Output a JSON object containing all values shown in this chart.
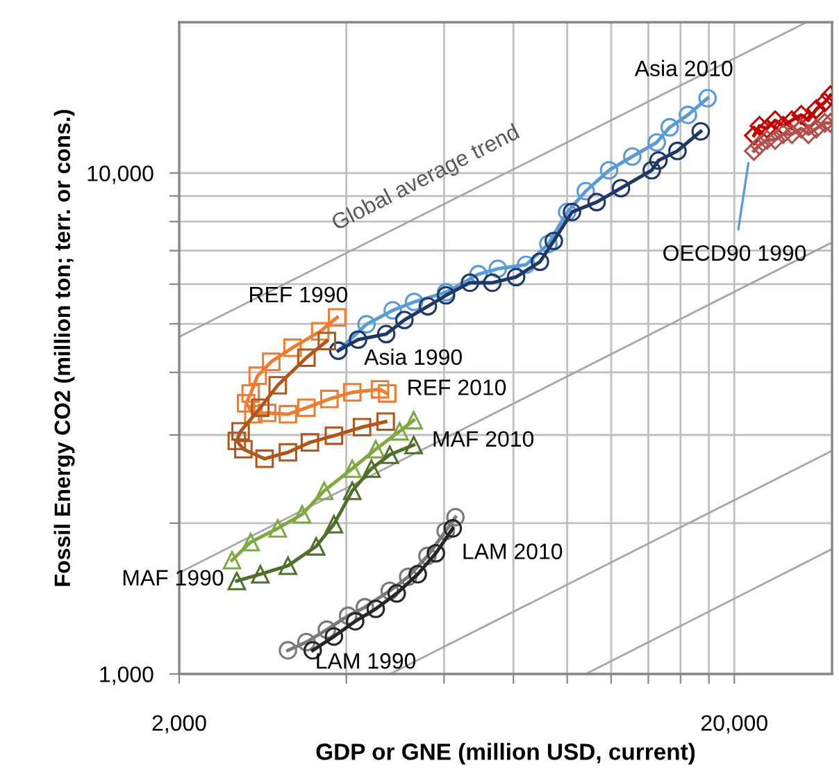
{
  "chart_data": {
    "type": "line",
    "xlabel": "GDP or GNE (million USD, current)",
    "ylabel": "Fossil Energy CO2 (million ton; terr. or cons.)",
    "log": "xy",
    "xlim": [
      2000,
      30000
    ],
    "xticks": [
      {
        "value": 2000,
        "label": "2,000"
      },
      {
        "value": 4000,
        "label": null
      },
      {
        "value": 6000,
        "label": null
      },
      {
        "value": 8000,
        "label": null
      },
      {
        "value": 10000,
        "label": null
      },
      {
        "value": 12000,
        "label": null
      },
      {
        "value": 14000,
        "label": null
      },
      {
        "value": 16000,
        "label": null
      },
      {
        "value": 18000,
        "label": null
      },
      {
        "value": 20000,
        "label": "20,000"
      }
    ],
    "ylim": [
      1000,
      20000
    ],
    "yticks": [
      {
        "value": 1000,
        "label": "1,000"
      },
      {
        "value": 2000,
        "label": null
      },
      {
        "value": 3000,
        "label": null
      },
      {
        "value": 4000,
        "label": null
      },
      {
        "value": 5000,
        "label": null
      },
      {
        "value": 6000,
        "label": null
      },
      {
        "value": 7000,
        "label": null
      },
      {
        "value": 8000,
        "label": null
      },
      {
        "value": 9000,
        "label": null
      },
      {
        "value": 10000,
        "label": "10,000"
      }
    ],
    "grid": true,
    "series": [
      {
        "type": "line",
        "color": "#a6a6a6",
        "marker": "none",
        "x": [
          2000,
          27000
        ],
        "values": [
          4710,
          20000
        ]
      },
      {
        "type": "line",
        "color": "#a6a6a6",
        "marker": "none",
        "x": [
          2000,
          30000
        ],
        "values": [
          1593,
          7270
        ]
      },
      {
        "type": "line",
        "color": "#a6a6a6",
        "marker": "none",
        "x": [
          4800,
          30000
        ],
        "values": [
          1000,
          2790
        ]
      },
      {
        "type": "line",
        "color": "#a6a6a6",
        "marker": "none",
        "x": [
          10800,
          30000
        ],
        "values": [
          1000,
          1776
        ]
      },
      {
        "type": "line",
        "color": "#5b9bd5",
        "marker": "circle",
        "x": [
          3870,
          4350,
          4850,
          5300,
          6050,
          6920,
          7500,
          8430,
          9250,
          10000,
          10800,
          11900,
          13100,
          14500,
          15300,
          16500,
          17900
        ],
        "values": [
          4420,
          4990,
          5320,
          5530,
          5780,
          6280,
          6440,
          6560,
          7220,
          8360,
          9200,
          10130,
          10790,
          11510,
          12340,
          13060,
          14110
        ]
      },
      {
        "type": "line",
        "color": "#1f3864",
        "marker": "circle",
        "x": [
          3870,
          4200,
          4720,
          5090,
          5610,
          6050,
          6680,
          7330,
          8090,
          8930,
          9460,
          10200,
          11300,
          12500,
          14200,
          14600,
          15800,
          17400
        ],
        "values": [
          4420,
          4650,
          4770,
          5090,
          5420,
          5700,
          6040,
          6040,
          6200,
          6650,
          7320,
          8360,
          8750,
          9330,
          10130,
          10590,
          11070,
          12110
        ]
      },
      {
        "type": "line",
        "color": "#c00000",
        "marker": "diamond",
        "x": [
          21700,
          22200,
          22900,
          23700,
          24500,
          25400,
          26400,
          27200,
          28100,
          29100,
          29800
        ],
        "values": [
          11880,
          12420,
          12270,
          12740,
          12420,
          12740,
          13060,
          12740,
          13410,
          13840,
          14290
        ]
      },
      {
        "type": "line",
        "color": "#b0504c",
        "marker": "diamond",
        "x": [
          21700,
          22200,
          22900,
          23700,
          24500,
          25400,
          26400,
          27200,
          28100,
          29100,
          29800
        ],
        "values": [
          11070,
          11360,
          11650,
          11650,
          11960,
          11960,
          12270,
          11960,
          12270,
          12590,
          12590
        ]
      },
      {
        "type": "line",
        "color": "#ed7d31",
        "marker": "square",
        "x": [
          3850,
          3590,
          3200,
          2930,
          2770,
          2690,
          2640,
          2720,
          2880,
          3140,
          3390,
          3730,
          4100,
          4600,
          4740
        ],
        "values": [
          5150,
          4830,
          4480,
          4200,
          3940,
          3630,
          3470,
          3300,
          3320,
          3300,
          3400,
          3540,
          3650,
          3700,
          3630
        ]
      },
      {
        "type": "line",
        "color": "#b0561b",
        "marker": "square",
        "x": [
          3690,
          3390,
          3010,
          2800,
          2580,
          2540,
          2610,
          2850,
          3140,
          3440,
          3800,
          4270,
          4710
        ],
        "values": [
          4620,
          4280,
          3770,
          3400,
          3050,
          2920,
          2810,
          2690,
          2770,
          2900,
          2990,
          3110,
          3190
        ]
      },
      {
        "type": "line",
        "color": "#7fa843",
        "marker": "triangle",
        "x": [
          2490,
          2690,
          3010,
          3330,
          3650,
          4100,
          4520,
          4990,
          5290
        ],
        "values": [
          1687,
          1833,
          1953,
          2083,
          2321,
          2570,
          2810,
          3050,
          3210
        ]
      },
      {
        "type": "line",
        "color": "#4f6f2b",
        "marker": "triangle",
        "x": [
          2540,
          2800,
          3140,
          3530,
          3800,
          4100,
          4440,
          4790,
          5290
        ],
        "values": [
          1533,
          1582,
          1645,
          1798,
          1991,
          2321,
          2570,
          2740,
          2865
        ]
      },
      {
        "type": "line",
        "color": "#7a7a7a",
        "marker": "circle",
        "x": [
          3140,
          3390,
          3690,
          4030,
          4320,
          4790,
          5170,
          5600,
          6040,
          6290
        ],
        "values": [
          1115,
          1158,
          1226,
          1307,
          1359,
          1466,
          1563,
          1720,
          1929,
          2056
        ]
      },
      {
        "type": "line",
        "color": "#262626",
        "marker": "circle",
        "x": [
          3480,
          3800,
          4150,
          4520,
          4930,
          5380,
          5800,
          6220
        ],
        "values": [
          1115,
          1188,
          1274,
          1349,
          1448,
          1582,
          1742,
          1953
        ]
      }
    ],
    "annotations": [
      {
        "text": "Global average trend",
        "x": 5570,
        "y": 8360
      },
      {
        "text": "Asia 2010",
        "x": 17900,
        "y": 14110
      },
      {
        "text": "OECD90 1990",
        "x": 21200,
        "y": 10460
      },
      {
        "text": "REF 1990",
        "x": 3850,
        "y": 5150
      },
      {
        "text": "Asia 1990",
        "x": 3870,
        "y": 4420
      },
      {
        "text": "REF 2010",
        "x": 4740,
        "y": 3630
      },
      {
        "text": "MAF 2010",
        "x": 5290,
        "y": 2865
      },
      {
        "text": "MAF 1990",
        "x": 2540,
        "y": 1533
      },
      {
        "text": "LAM 2010",
        "x": 6290,
        "y": 2056
      },
      {
        "text": "LAM 1990",
        "x": 3140,
        "y": 1115
      }
    ]
  }
}
